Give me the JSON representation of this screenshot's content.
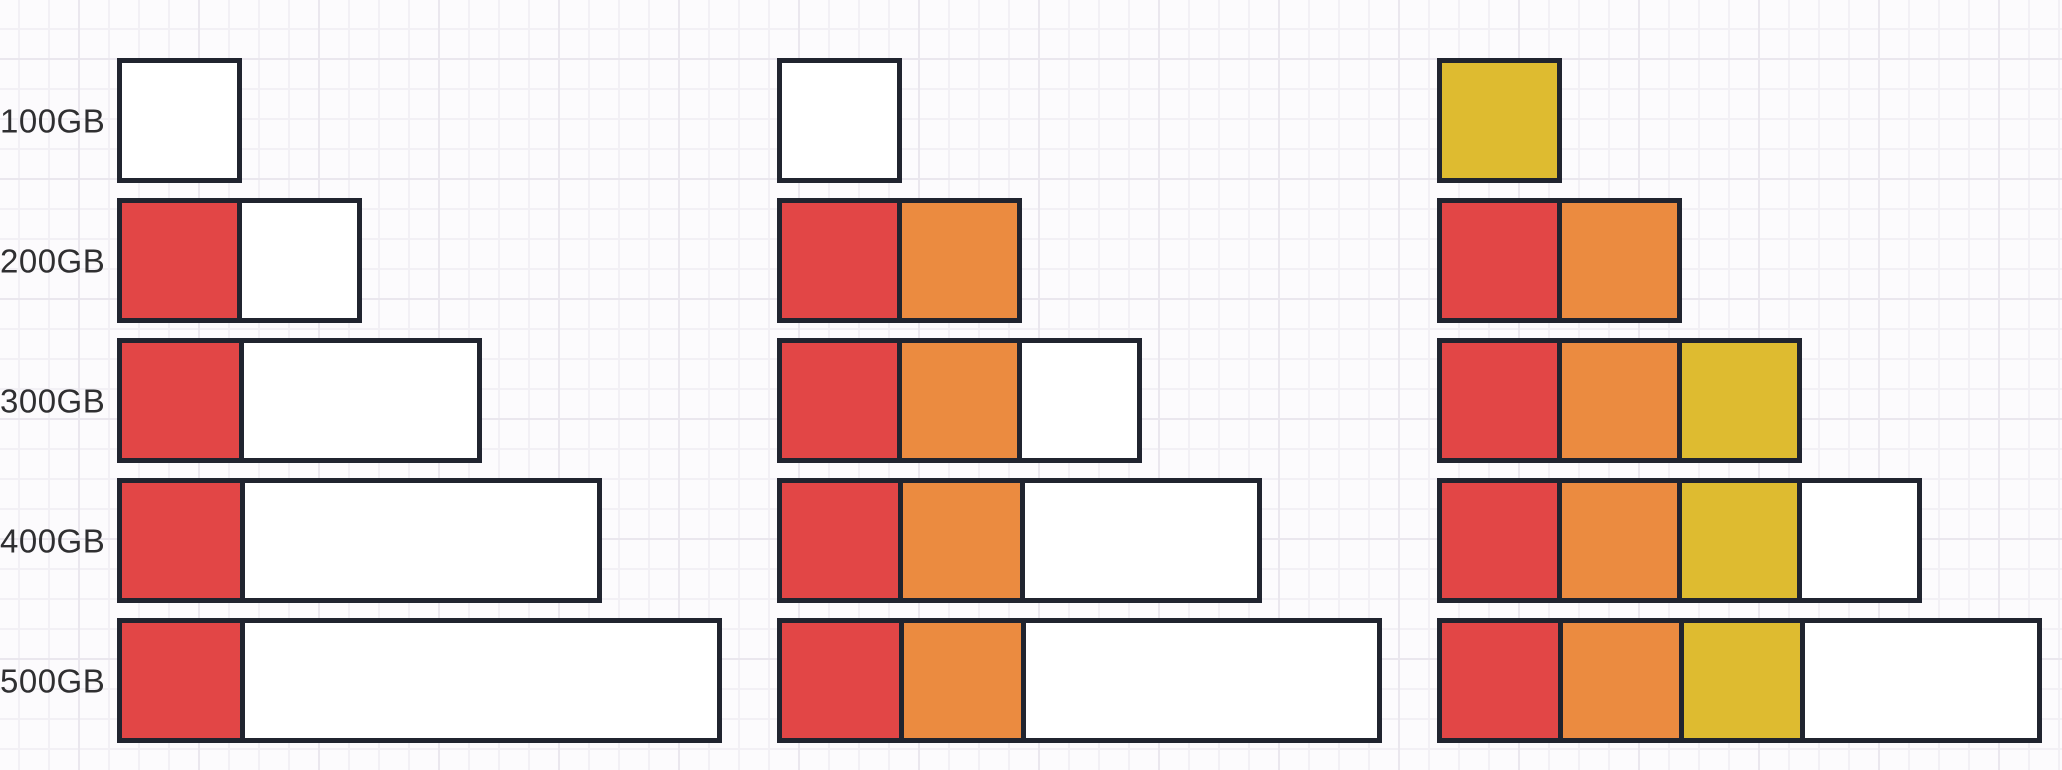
{
  "canvas": {
    "background": "#fcfbfd",
    "grid_minor_color": "#f2f0f5",
    "grid_major_color": "#eae7ee",
    "stroke_color": "#20242f",
    "label_color": "#2f2f31"
  },
  "diagram": {
    "palette": {
      "red": "#e24646",
      "orange": "#eb8b40",
      "yellow": "#debb30",
      "white": "#ffffff"
    },
    "rows": [
      {
        "label": "100GB",
        "bars": {
          "left": [
            {
              "color": "white",
              "units": 1
            }
          ],
          "middle": [
            {
              "color": "white",
              "units": 1
            }
          ],
          "right": [
            {
              "color": "yellow",
              "units": 1
            }
          ]
        }
      },
      {
        "label": "200GB",
        "bars": {
          "left": [
            {
              "color": "red",
              "units": 1
            },
            {
              "color": "white",
              "units": 1
            }
          ],
          "middle": [
            {
              "color": "red",
              "units": 1
            },
            {
              "color": "orange",
              "units": 1
            }
          ],
          "right": [
            {
              "color": "red",
              "units": 1
            },
            {
              "color": "orange",
              "units": 1
            }
          ]
        }
      },
      {
        "label": "300GB",
        "bars": {
          "left": [
            {
              "color": "red",
              "units": 1
            },
            {
              "color": "white",
              "units": 2
            }
          ],
          "middle": [
            {
              "color": "red",
              "units": 1
            },
            {
              "color": "orange",
              "units": 1
            },
            {
              "color": "white",
              "units": 1
            }
          ],
          "right": [
            {
              "color": "red",
              "units": 1
            },
            {
              "color": "orange",
              "units": 1
            },
            {
              "color": "yellow",
              "units": 1
            }
          ]
        }
      },
      {
        "label": "400GB",
        "bars": {
          "left": [
            {
              "color": "red",
              "units": 1
            },
            {
              "color": "white",
              "units": 3
            }
          ],
          "middle": [
            {
              "color": "red",
              "units": 1
            },
            {
              "color": "orange",
              "units": 1
            },
            {
              "color": "white",
              "units": 2
            }
          ],
          "right": [
            {
              "color": "red",
              "units": 1
            },
            {
              "color": "orange",
              "units": 1
            },
            {
              "color": "yellow",
              "units": 1
            },
            {
              "color": "white",
              "units": 1
            }
          ]
        }
      },
      {
        "label": "500GB",
        "bars": {
          "left": [
            {
              "color": "red",
              "units": 1
            },
            {
              "color": "white",
              "units": 4
            }
          ],
          "middle": [
            {
              "color": "red",
              "units": 1
            },
            {
              "color": "orange",
              "units": 1
            },
            {
              "color": "white",
              "units": 3
            }
          ],
          "right": [
            {
              "color": "red",
              "units": 1
            },
            {
              "color": "orange",
              "units": 1
            },
            {
              "color": "yellow",
              "units": 1
            },
            {
              "color": "white",
              "units": 2
            }
          ]
        }
      }
    ]
  }
}
